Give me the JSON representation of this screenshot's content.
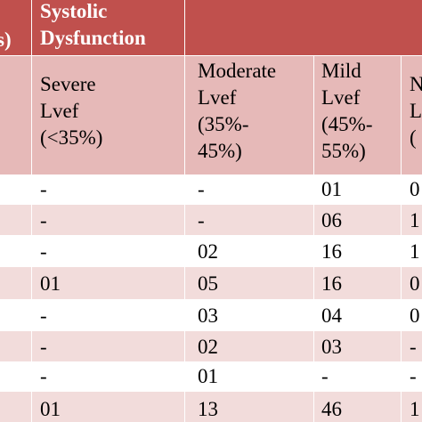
{
  "header": {
    "left_partial": "s)",
    "group_title": "Systolic Dysfunction",
    "group_title_line1": "Systolic",
    "group_title_line2": "Dysfunction"
  },
  "columns": [
    {
      "lines": [
        "Severe",
        "Lvef",
        "(<35%)"
      ]
    },
    {
      "lines": [
        "Moderate",
        "Lvef",
        "(35%-",
        "45%)"
      ]
    },
    {
      "lines": [
        "Mild",
        "Lvef",
        "(45%-",
        "55%)"
      ]
    },
    {
      "lines": [
        "N",
        "L",
        "("
      ]
    }
  ],
  "rows": [
    [
      "-",
      "-",
      "01",
      "0"
    ],
    [
      "-",
      "-",
      "06",
      "1"
    ],
    [
      "-",
      "02",
      "16",
      "1"
    ],
    [
      "01",
      "05",
      "16",
      "0"
    ],
    [
      "-",
      "03",
      "04",
      "0"
    ],
    [
      "-",
      "02",
      "03",
      "-"
    ],
    [
      "-",
      "01",
      "-",
      "-"
    ],
    [
      "01",
      "13",
      "46",
      "1"
    ]
  ],
  "colors": {
    "header_red": "#c0504d",
    "header_pink": "#e6b9b8",
    "row_white": "#ffffff",
    "row_pink": "#f2dcdb"
  }
}
